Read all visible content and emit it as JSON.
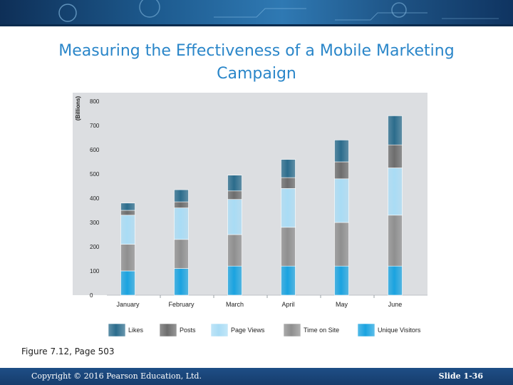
{
  "slide": {
    "title": "Measuring the Effectiveness of a Mobile Marketing Campaign",
    "caption": "Figure 7.12, Page 503",
    "copyright": "Copyright © 2016 Pearson Education, Ltd.",
    "slide_number": "Slide 1-36"
  },
  "chart_data": {
    "type": "bar",
    "stacked": true,
    "title": "",
    "xlabel": "",
    "ylabel": "(Billions)",
    "ylim": [
      0,
      800
    ],
    "yticks": [
      0,
      100,
      200,
      300,
      400,
      500,
      600,
      700,
      800
    ],
    "categories": [
      "January",
      "February",
      "March",
      "April",
      "May",
      "June"
    ],
    "series": [
      {
        "name": "Unique Visitors",
        "color": "#1aa3e0",
        "values": [
          100,
          110,
          120,
          120,
          120,
          120
        ]
      },
      {
        "name": "Time on Site",
        "color": "#8f8f8f",
        "values": [
          110,
          120,
          130,
          160,
          180,
          210
        ]
      },
      {
        "name": "Page Views",
        "color": "#a9dcf5",
        "values": [
          120,
          130,
          145,
          160,
          180,
          195
        ]
      },
      {
        "name": "Posts",
        "color": "#6d6d6d",
        "values": [
          20,
          25,
          35,
          45,
          70,
          95
        ]
      },
      {
        "name": "Likes",
        "color": "#2b6c8c",
        "values": [
          30,
          50,
          65,
          75,
          90,
          120
        ]
      }
    ],
    "legend": {
      "position": "bottom",
      "order": [
        "Likes",
        "Posts",
        "Page Views",
        "Time on Site",
        "Unique Visitors"
      ]
    }
  }
}
